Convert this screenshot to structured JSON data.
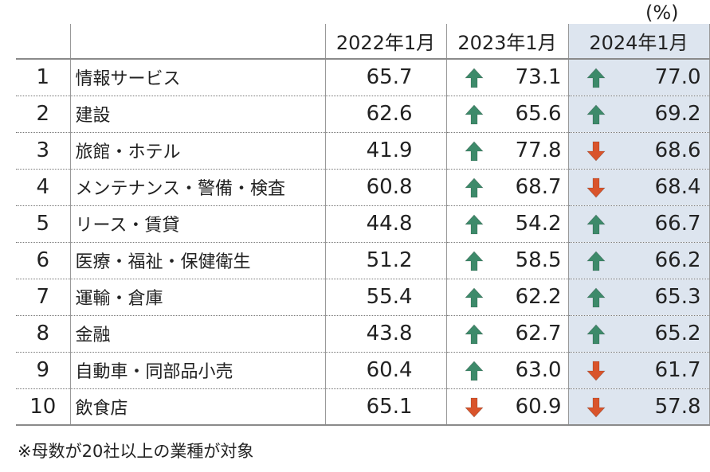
{
  "unit": "(%)",
  "note": "※母数が20社以上の業種が対象",
  "colors": {
    "up": "#3d8a6a",
    "down": "#d9542b",
    "highlight": "#dde5ef"
  },
  "chart_data": {
    "type": "table",
    "columns": [
      "2022年1月",
      "2023年1月",
      "2024年1月"
    ],
    "rows": [
      {
        "rank": "1",
        "industry": "情報サービス",
        "values": [
          "65.7",
          "73.1",
          "77.0"
        ],
        "trend_2023": "up",
        "trend_2024": "up"
      },
      {
        "rank": "2",
        "industry": "建設",
        "values": [
          "62.6",
          "65.6",
          "69.2"
        ],
        "trend_2023": "up",
        "trend_2024": "up"
      },
      {
        "rank": "3",
        "industry": "旅館・ホテル",
        "values": [
          "41.9",
          "77.8",
          "68.6"
        ],
        "trend_2023": "up",
        "trend_2024": "down"
      },
      {
        "rank": "4",
        "industry": "メンテナンス・警備・検査",
        "values": [
          "60.8",
          "68.7",
          "68.4"
        ],
        "trend_2023": "up",
        "trend_2024": "down"
      },
      {
        "rank": "5",
        "industry": "リース・賃貸",
        "values": [
          "44.8",
          "54.2",
          "66.7"
        ],
        "trend_2023": "up",
        "trend_2024": "up"
      },
      {
        "rank": "6",
        "industry": "医療・福祉・保健衛生",
        "values": [
          "51.2",
          "58.5",
          "66.2"
        ],
        "trend_2023": "up",
        "trend_2024": "up"
      },
      {
        "rank": "7",
        "industry": "運輸・倉庫",
        "values": [
          "55.4",
          "62.2",
          "65.3"
        ],
        "trend_2023": "up",
        "trend_2024": "up"
      },
      {
        "rank": "8",
        "industry": "金融",
        "values": [
          "43.8",
          "62.7",
          "65.2"
        ],
        "trend_2023": "up",
        "trend_2024": "up"
      },
      {
        "rank": "9",
        "industry": "自動車・同部品小売",
        "values": [
          "60.4",
          "63.0",
          "61.7"
        ],
        "trend_2023": "up",
        "trend_2024": "down"
      },
      {
        "rank": "10",
        "industry": "飲食店",
        "values": [
          "65.1",
          "60.9",
          "57.8"
        ],
        "trend_2023": "down",
        "trend_2024": "down"
      }
    ]
  }
}
